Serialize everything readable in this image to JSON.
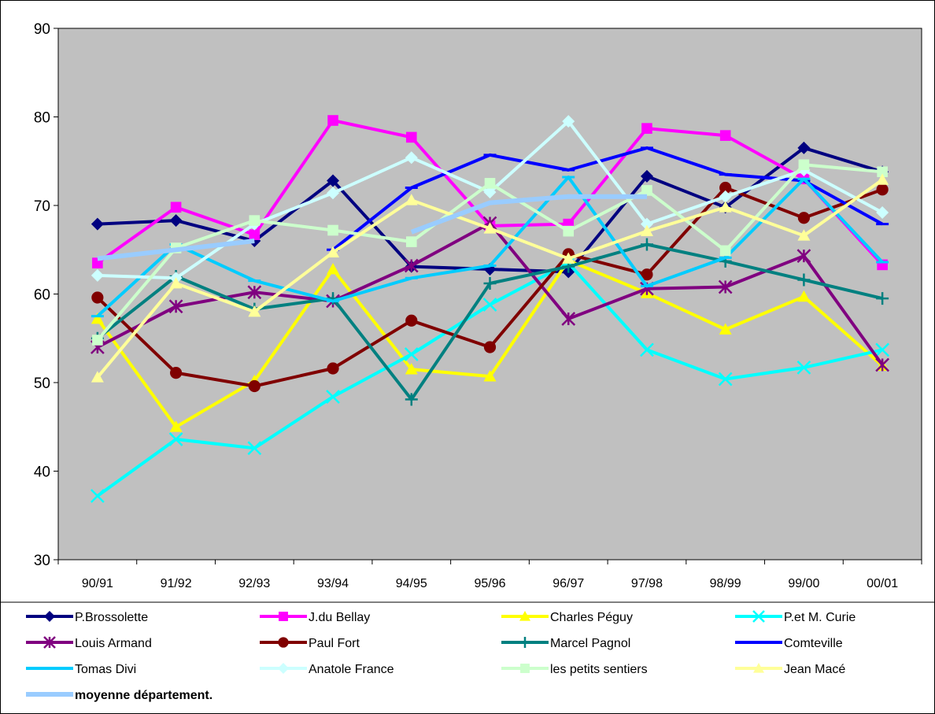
{
  "chart_data": {
    "type": "line",
    "categories": [
      "90/91",
      "91/92",
      "92/93",
      "93/94",
      "94/95",
      "95/96",
      "96/97",
      "97/98",
      "98/99",
      "99/00",
      "00/01"
    ],
    "ylim": [
      30,
      90
    ],
    "yticks": [
      "30",
      "40",
      "50",
      "60",
      "70",
      "80",
      "90"
    ],
    "grid": false,
    "plot_background": "#c0c0c0",
    "legend_position": "bottom",
    "series": [
      {
        "name": "P.Brossolette",
        "color": "#000080",
        "marker": "diamond",
        "values": [
          67.9,
          68.3,
          66.0,
          72.8,
          63.1,
          62.8,
          62.5,
          73.3,
          69.8,
          76.5,
          73.8
        ]
      },
      {
        "name": "J.du Bellay",
        "color": "#ff00ff",
        "marker": "square",
        "values": [
          63.5,
          69.8,
          66.7,
          79.6,
          77.7,
          67.7,
          67.9,
          78.7,
          77.9,
          73.0,
          63.3
        ]
      },
      {
        "name": "Charles Péguy",
        "color": "#ffff00",
        "marker": "triangle",
        "values": [
          57.2,
          45.0,
          50.2,
          62.8,
          51.5,
          50.7,
          63.8,
          60.1,
          56.0,
          59.7,
          51.9
        ]
      },
      {
        "name": "P.et M. Curie",
        "color": "#00ffff",
        "marker": "x",
        "values": [
          37.2,
          43.6,
          42.6,
          48.4,
          53.2,
          58.8,
          63.5,
          53.7,
          50.4,
          51.7,
          53.7
        ]
      },
      {
        "name": "Louis Armand",
        "color": "#800080",
        "marker": "star",
        "values": [
          54.0,
          58.6,
          60.2,
          59.2,
          63.2,
          68.0,
          57.2,
          60.6,
          60.8,
          64.3,
          52.0
        ]
      },
      {
        "name": "Paul Fort",
        "color": "#800000",
        "marker": "circle",
        "values": [
          59.6,
          51.1,
          49.6,
          51.6,
          57.0,
          54.0,
          64.5,
          62.2,
          72.0,
          68.6,
          71.8
        ]
      },
      {
        "name": "Marcel Pagnol",
        "color": "#008080",
        "marker": "plus",
        "values": [
          55.0,
          62.0,
          58.3,
          59.5,
          48.1,
          61.2,
          63.1,
          65.6,
          63.7,
          61.6,
          59.5
        ]
      },
      {
        "name": "Comteville",
        "color": "#0000ff",
        "marker": "dash",
        "values": [
          null,
          null,
          null,
          65.0,
          72.0,
          75.7,
          74.0,
          76.5,
          73.5,
          72.8,
          67.9
        ]
      },
      {
        "name": "Tomas Divi",
        "color": "#00ccff",
        "marker": "dash",
        "values": [
          57.5,
          65.6,
          61.5,
          59.2,
          61.8,
          63.2,
          73.2,
          60.9,
          64.1,
          73.0,
          63.6
        ]
      },
      {
        "name": "Anatole France",
        "color": "#ccffff",
        "marker": "diamond",
        "values": [
          62.1,
          61.8,
          67.9,
          71.4,
          75.4,
          71.5,
          79.5,
          67.9,
          71.0,
          74.0,
          69.2
        ]
      },
      {
        "name": "les petits sentiers",
        "color": "#ccffcc",
        "marker": "square",
        "values": [
          54.8,
          65.2,
          68.3,
          67.2,
          65.9,
          72.5,
          67.1,
          71.7,
          64.9,
          74.6,
          73.8
        ]
      },
      {
        "name": "Jean Macé",
        "color": "#ffff99",
        "marker": "triangle",
        "values": [
          50.6,
          61.2,
          58.0,
          64.7,
          70.6,
          67.4,
          64.0,
          67.1,
          69.8,
          66.6,
          72.9
        ]
      },
      {
        "name": "moyenne département.",
        "color": "#99ccff",
        "marker": "none",
        "bold_label": true,
        "values": [
          64.0,
          65.0,
          66.0,
          null,
          67.0,
          70.3,
          71.0,
          71.0,
          null,
          null,
          null
        ]
      }
    ]
  }
}
